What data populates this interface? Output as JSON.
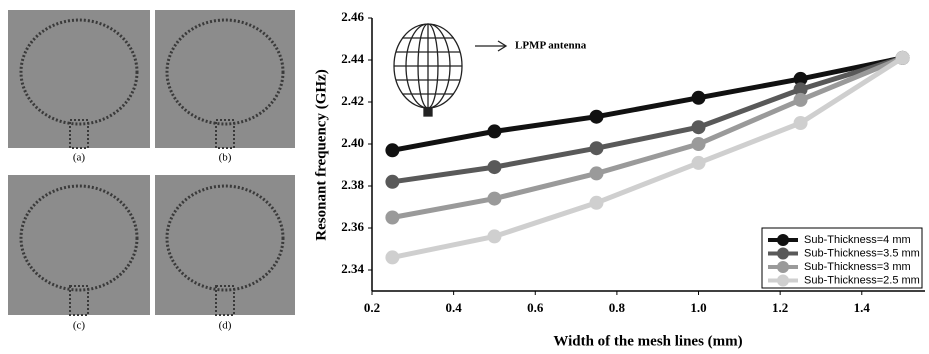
{
  "panels": [
    {
      "label": "(a)"
    },
    {
      "label": "(b)"
    },
    {
      "label": "(c)"
    },
    {
      "label": "(d)"
    }
  ],
  "chart_data": {
    "type": "line",
    "xlabel": "Width of the mesh lines (mm)",
    "ylabel": "Resonant frequency (GHz)",
    "annotation": "LPMP antenna",
    "x": [
      0.25,
      0.5,
      0.75,
      1.0,
      1.25,
      1.5
    ],
    "series": [
      {
        "name": "Sub-Thickness=4 mm",
        "color": "#111111",
        "values": [
          2.397,
          2.406,
          2.413,
          2.422,
          2.431,
          2.441
        ]
      },
      {
        "name": "Sub-Thickness=3.5 mm",
        "color": "#595959",
        "values": [
          2.382,
          2.389,
          2.398,
          2.408,
          2.426,
          2.441
        ]
      },
      {
        "name": "Sub-Thickness=3 mm",
        "color": "#9a9a9a",
        "values": [
          2.365,
          2.374,
          2.386,
          2.4,
          2.421,
          2.441
        ]
      },
      {
        "name": "Sub-Thickness=2.5 mm",
        "color": "#cfcfcf",
        "values": [
          2.346,
          2.356,
          2.372,
          2.391,
          2.41,
          2.441
        ]
      }
    ],
    "xlim": [
      0.2,
      1.55
    ],
    "xticks": [
      0.2,
      0.4,
      0.6,
      0.8,
      {
        "value": 1,
        "label": "1.0"
      },
      1.2,
      1.4
    ],
    "ylim": [
      2.33,
      2.46
    ],
    "yticks": [
      2.34,
      2.36,
      2.38,
      {
        "value": 2.4,
        "label": "2.40"
      },
      2.42,
      2.44,
      2.46
    ],
    "legend": "lower right"
  }
}
